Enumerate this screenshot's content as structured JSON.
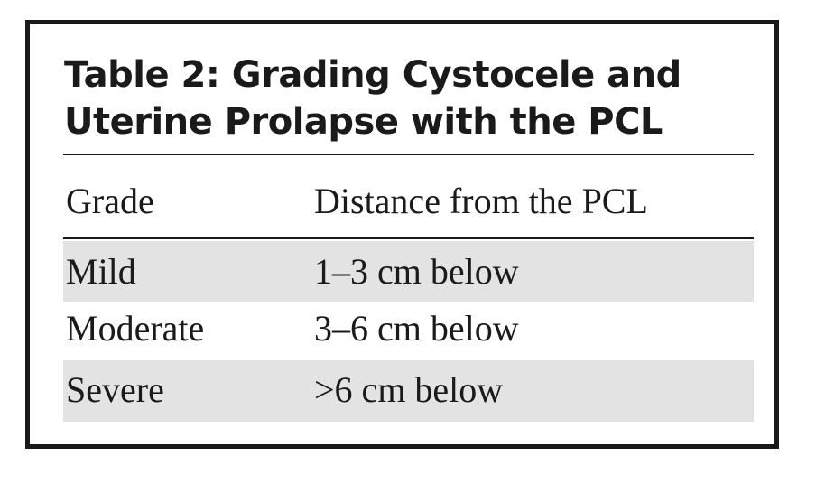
{
  "table": {
    "title_line1": "Table 2: Grading Cystocele and",
    "title_line2": "Uterine Prolapse with the PCL",
    "headers": [
      "Grade",
      "Distance from the PCL"
    ],
    "rows": [
      {
        "grade": "Mild",
        "distance": "1–3 cm below",
        "shaded": true
      },
      {
        "grade": "Moderate",
        "distance": "3–6 cm below",
        "shaded": false
      },
      {
        "grade": "Severe",
        "distance": ">6 cm below",
        "shaded": true
      }
    ]
  },
  "colors": {
    "text": "#1a1a1a",
    "shaded_row": "#e3e3e4",
    "border": "#1a1a1a"
  }
}
